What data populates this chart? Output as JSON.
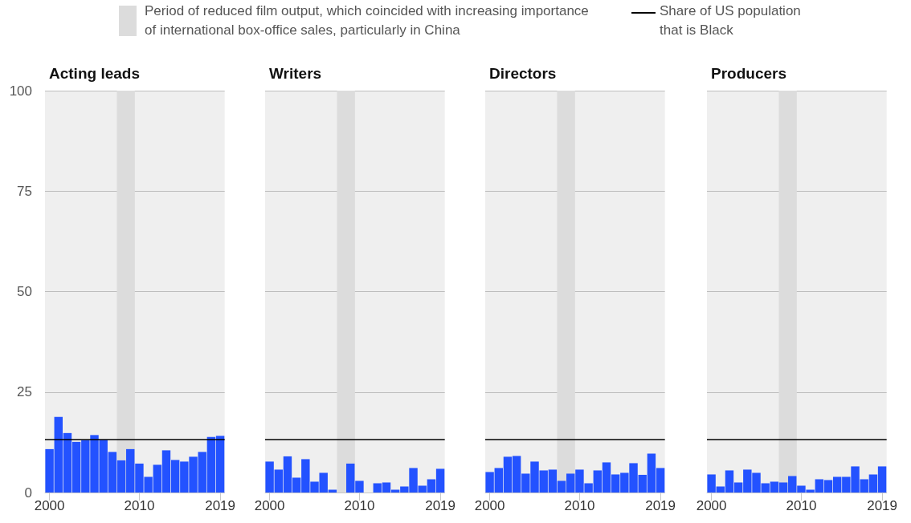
{
  "chart_data": [
    {
      "type": "bar",
      "title": "Acting leads",
      "x": [
        2000,
        2001,
        2002,
        2003,
        2004,
        2005,
        2006,
        2007,
        2008,
        2009,
        2010,
        2011,
        2012,
        2013,
        2014,
        2015,
        2016,
        2017,
        2018,
        2019
      ],
      "values": [
        10.8,
        18.8,
        14.8,
        12.6,
        13.0,
        14.3,
        13.1,
        10.1,
        8.0,
        10.8,
        7.2,
        3.9,
        6.9,
        10.5,
        8.1,
        7.7,
        8.9,
        10.1,
        13.8,
        14.1
      ],
      "color": "#2352ff",
      "xlim": [
        1999.5,
        2019.5
      ],
      "xticks": [
        2000,
        2010,
        2019
      ],
      "ylim": [
        0,
        100
      ],
      "yticks": [
        0,
        25,
        50,
        75,
        100
      ],
      "grid": "y",
      "legend": "top",
      "bands": [
        {
          "axis": "x",
          "from": 2007.5,
          "to": 2009.5,
          "color": "#dcdcdc",
          "label": "Period of reduced film output, which coincided with increasing importance of international box-office sales, particularly in China"
        }
      ],
      "ref_lines": [
        {
          "axis": "y",
          "value": 13.3,
          "color": "#000000",
          "label": "Share of US population that is Black"
        }
      ]
    },
    {
      "type": "bar",
      "title": "Writers",
      "x": [
        2000,
        2001,
        2002,
        2003,
        2004,
        2005,
        2006,
        2007,
        2008,
        2009,
        2010,
        2011,
        2012,
        2013,
        2014,
        2015,
        2016,
        2017,
        2018,
        2019
      ],
      "values": [
        7.7,
        5.7,
        9.0,
        3.7,
        8.3,
        2.7,
        4.9,
        0.7,
        0,
        7.2,
        2.9,
        0,
        2.3,
        2.5,
        0.7,
        1.5,
        6.1,
        1.7,
        3.3,
        5.9
      ],
      "color": "#2352ff",
      "xlim": [
        1999.5,
        2019.5
      ],
      "xticks": [
        2000,
        2010,
        2019
      ],
      "ylim": [
        0,
        100
      ],
      "yticks": [
        0,
        25,
        50,
        75,
        100
      ],
      "grid": "y",
      "tick_labels": "x",
      "bands": [
        {
          "axis": "x",
          "from": 2007.5,
          "to": 2009.5,
          "color": "#dcdcdc"
        }
      ],
      "ref_lines": [
        {
          "axis": "y",
          "value": 13.3,
          "color": "#000000"
        }
      ]
    },
    {
      "type": "bar",
      "title": "Directors",
      "x": [
        2000,
        2001,
        2002,
        2003,
        2004,
        2005,
        2006,
        2007,
        2008,
        2009,
        2010,
        2011,
        2012,
        2013,
        2014,
        2015,
        2016,
        2017,
        2018,
        2019
      ],
      "values": [
        5.1,
        6.1,
        8.9,
        9.1,
        4.7,
        7.7,
        5.5,
        5.7,
        2.9,
        4.7,
        5.7,
        2.3,
        5.5,
        7.5,
        4.5,
        4.9,
        7.3,
        4.4,
        9.7,
        6.1
      ],
      "color": "#2352ff",
      "xlim": [
        1999.5,
        2019.5
      ],
      "xticks": [
        2000,
        2010,
        2019
      ],
      "ylim": [
        0,
        100
      ],
      "yticks": [
        0,
        25,
        50,
        75,
        100
      ],
      "grid": "y",
      "tick_labels": "x",
      "bands": [
        {
          "axis": "x",
          "from": 2007.5,
          "to": 2009.5,
          "color": "#dcdcdc"
        }
      ],
      "ref_lines": [
        {
          "axis": "y",
          "value": 13.3,
          "color": "#000000"
        }
      ]
    },
    {
      "type": "bar",
      "title": "Producers",
      "x": [
        2000,
        2001,
        2002,
        2003,
        2004,
        2005,
        2006,
        2007,
        2008,
        2009,
        2010,
        2011,
        2012,
        2013,
        2014,
        2015,
        2016,
        2017,
        2018,
        2019
      ],
      "values": [
        4.5,
        1.5,
        5.5,
        2.5,
        5.7,
        4.9,
        2.3,
        2.7,
        2.5,
        4.1,
        1.7,
        0.7,
        3.3,
        3.1,
        3.9,
        3.9,
        6.5,
        3.3,
        4.5,
        6.5
      ],
      "color": "#2352ff",
      "xlim": [
        1999.5,
        2019.5
      ],
      "xticks": [
        2000,
        2010,
        2019
      ],
      "ylim": [
        0,
        100
      ],
      "yticks": [
        0,
        25,
        50,
        75,
        100
      ],
      "grid": "y",
      "tick_labels": "x",
      "bands": [
        {
          "axis": "x",
          "from": 2007.5,
          "to": 2009.5,
          "color": "#dcdcdc"
        }
      ],
      "ref_lines": [
        {
          "axis": "y",
          "value": 13.3,
          "color": "#000000"
        }
      ]
    }
  ]
}
